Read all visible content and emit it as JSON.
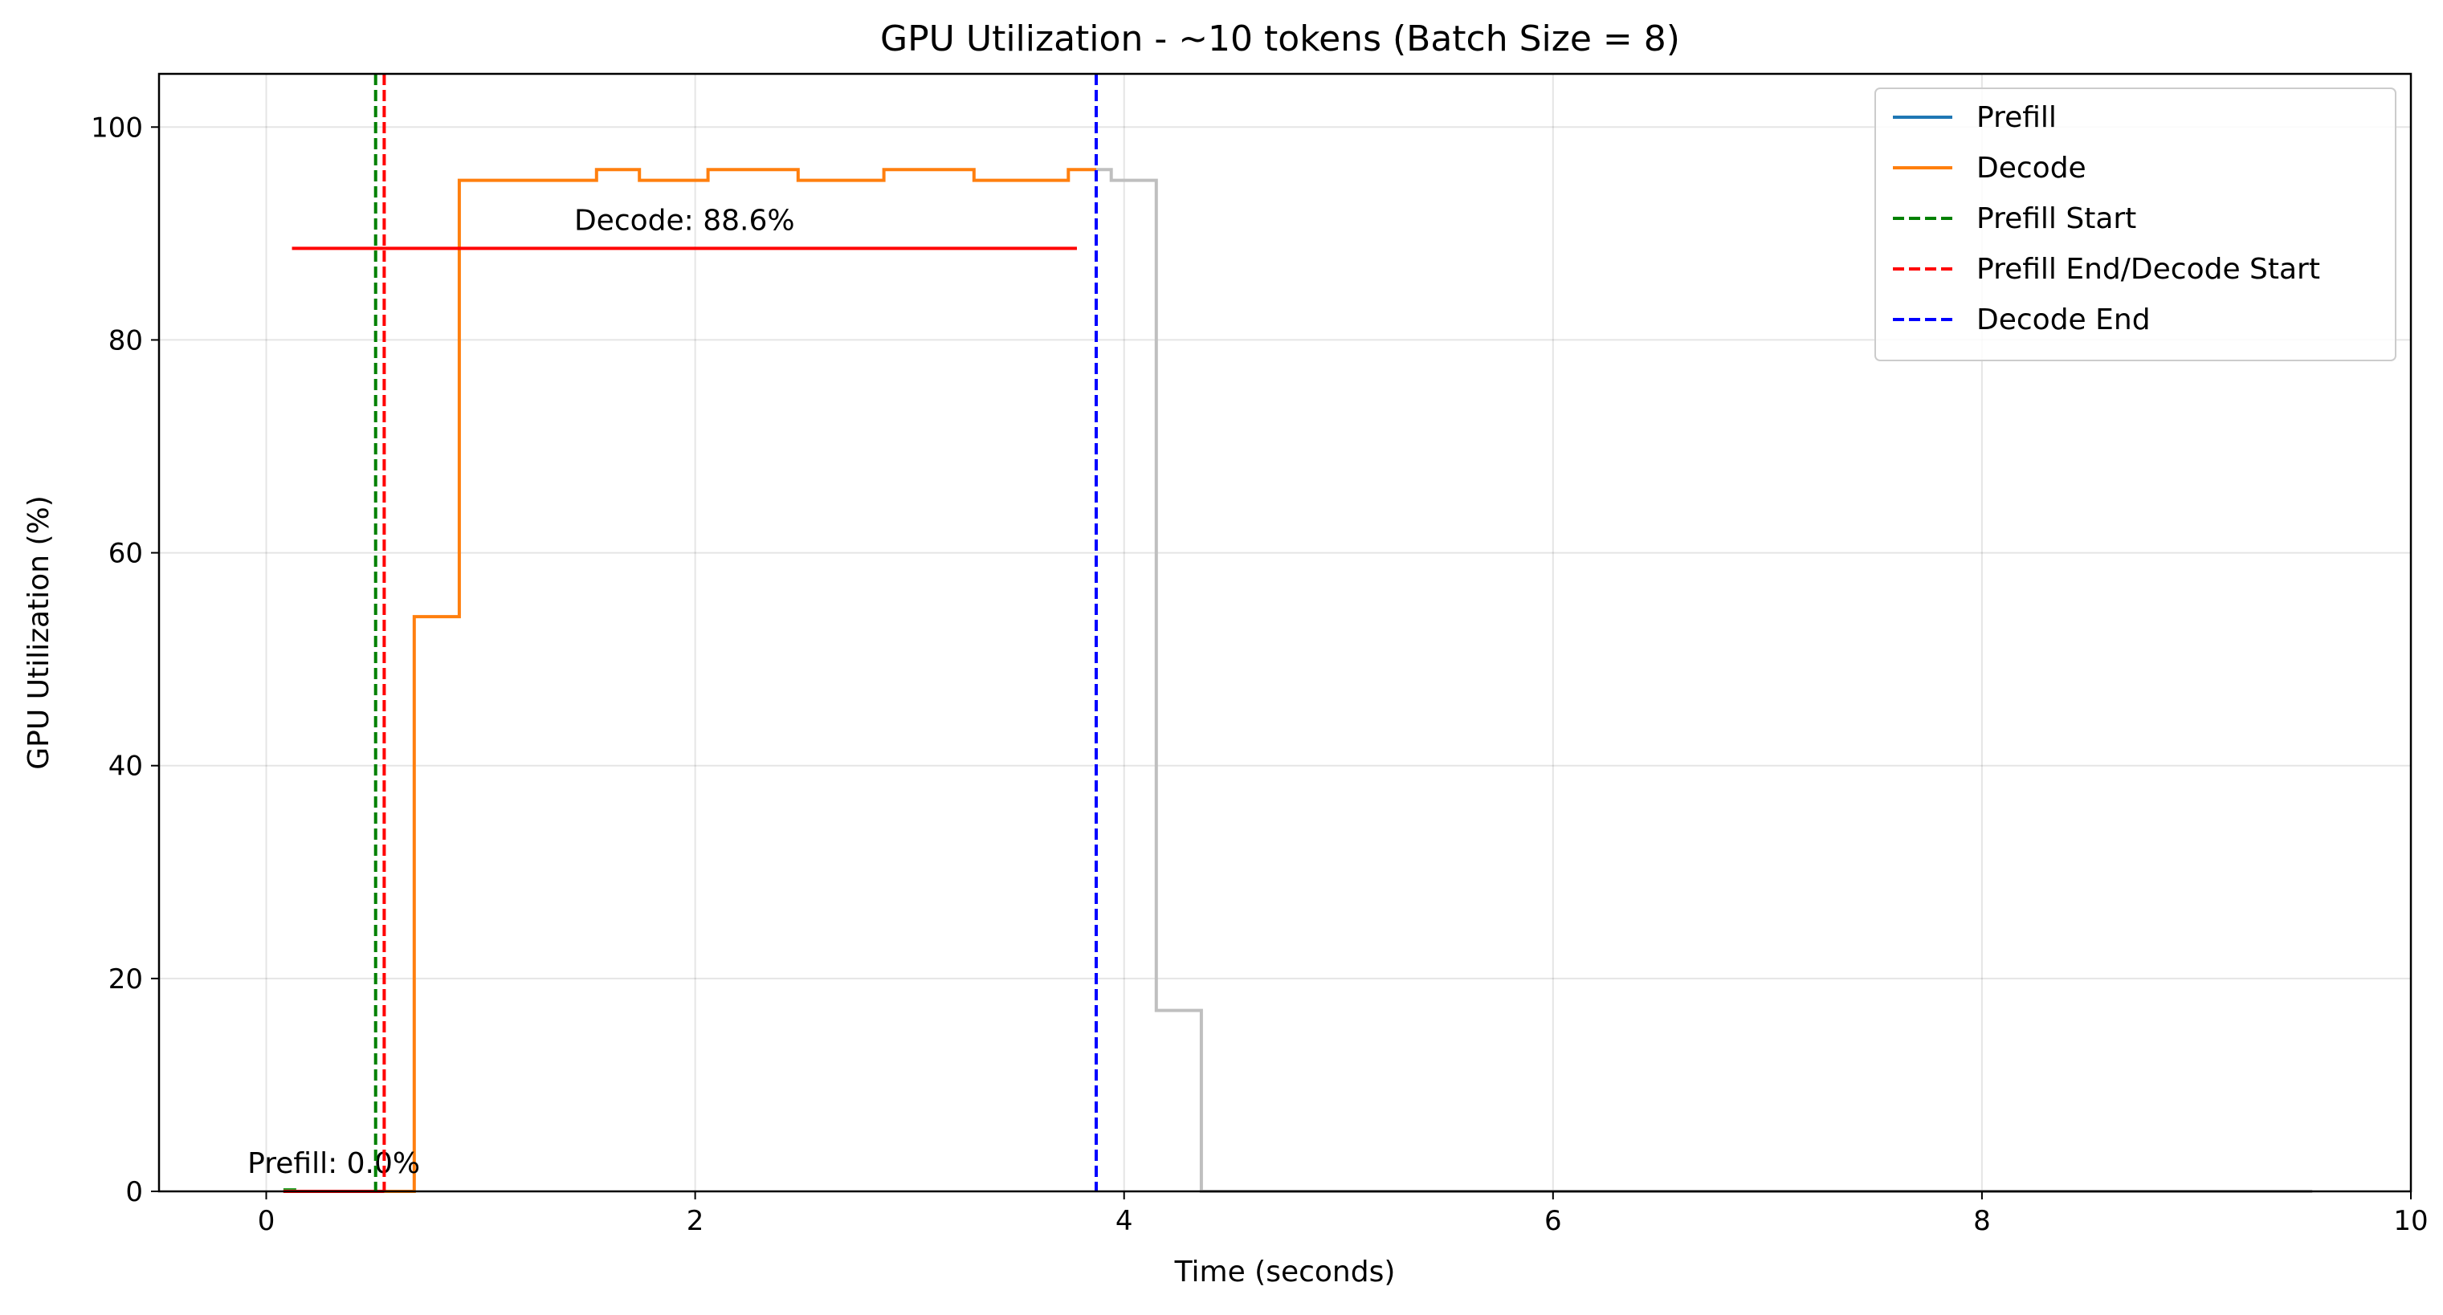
{
  "chart_data": {
    "type": "line",
    "title": "GPU Utilization - ~10 tokens (Batch Size = 8)",
    "xlabel": "Time (seconds)",
    "ylabel": "GPU Utilization (%)",
    "xlim": [
      -0.5,
      10
    ],
    "ylim": [
      0,
      105
    ],
    "x_ticks": [
      0,
      2,
      4,
      6,
      8,
      10
    ],
    "y_ticks": [
      0,
      20,
      40,
      60,
      80,
      100
    ],
    "grid": true,
    "legend_position": "top-right",
    "series": [
      {
        "name": "Prefill",
        "color": "#1f77b4",
        "style": "step",
        "points": [
          [
            0.08,
            0
          ],
          [
            0.55,
            0
          ]
        ]
      },
      {
        "name": "Decode",
        "color": "#ff7f0e",
        "style": "step",
        "points": [
          [
            0.55,
            0
          ],
          [
            0.69,
            0
          ],
          [
            0.69,
            54
          ],
          [
            0.9,
            54
          ],
          [
            0.9,
            95
          ],
          [
            1.54,
            95
          ],
          [
            1.54,
            96
          ],
          [
            1.74,
            96
          ],
          [
            1.74,
            95
          ],
          [
            2.06,
            95
          ],
          [
            2.06,
            96
          ],
          [
            2.48,
            96
          ],
          [
            2.48,
            95
          ],
          [
            2.88,
            95
          ],
          [
            2.88,
            96
          ],
          [
            3.3,
            96
          ],
          [
            3.3,
            95
          ],
          [
            3.74,
            95
          ],
          [
            3.74,
            96
          ],
          [
            3.87,
            96
          ]
        ]
      },
      {
        "color": "#bfbfbf",
        "style": "step",
        "points": [
          [
            3.87,
            96
          ],
          [
            3.94,
            96
          ],
          [
            3.94,
            95
          ],
          [
            4.15,
            95
          ],
          [
            4.15,
            17
          ],
          [
            4.36,
            17
          ],
          [
            4.36,
            0
          ],
          [
            9.54,
            0
          ]
        ]
      },
      {
        "color": "#2ca02c",
        "style": "step",
        "points": [
          [
            0.08,
            0.15
          ],
          [
            0.14,
            0.15
          ]
        ]
      }
    ],
    "vertical_lines": [
      {
        "name": "Prefill Start",
        "x": 0.51,
        "color": "#008000",
        "dash": true
      },
      {
        "name": "Prefill End/Decode Start",
        "x": 0.55,
        "color": "#ff0000",
        "dash": true
      },
      {
        "name": "Decode End",
        "x": 3.87,
        "color": "#0000ff",
        "dash": true
      }
    ],
    "average_lines": [
      {
        "label": "Decode: 88.6%",
        "value": 88.6,
        "x_start": 0.12,
        "x_end": 3.78,
        "color": "#ff0000"
      },
      {
        "label": "Prefill: 0.0%",
        "value": 0.0,
        "x_start": 0.08,
        "x_end": 0.55,
        "color": "#ff0000"
      }
    ],
    "legend": [
      {
        "label": "Prefill",
        "color": "#1f77b4",
        "dash": false
      },
      {
        "label": "Decode",
        "color": "#ff7f0e",
        "dash": false
      },
      {
        "label": "Prefill Start",
        "color": "#008000",
        "dash": true
      },
      {
        "label": "Prefill End/Decode Start",
        "color": "#ff0000",
        "dash": true
      },
      {
        "label": "Decode End",
        "color": "#0000ff",
        "dash": true
      }
    ]
  }
}
